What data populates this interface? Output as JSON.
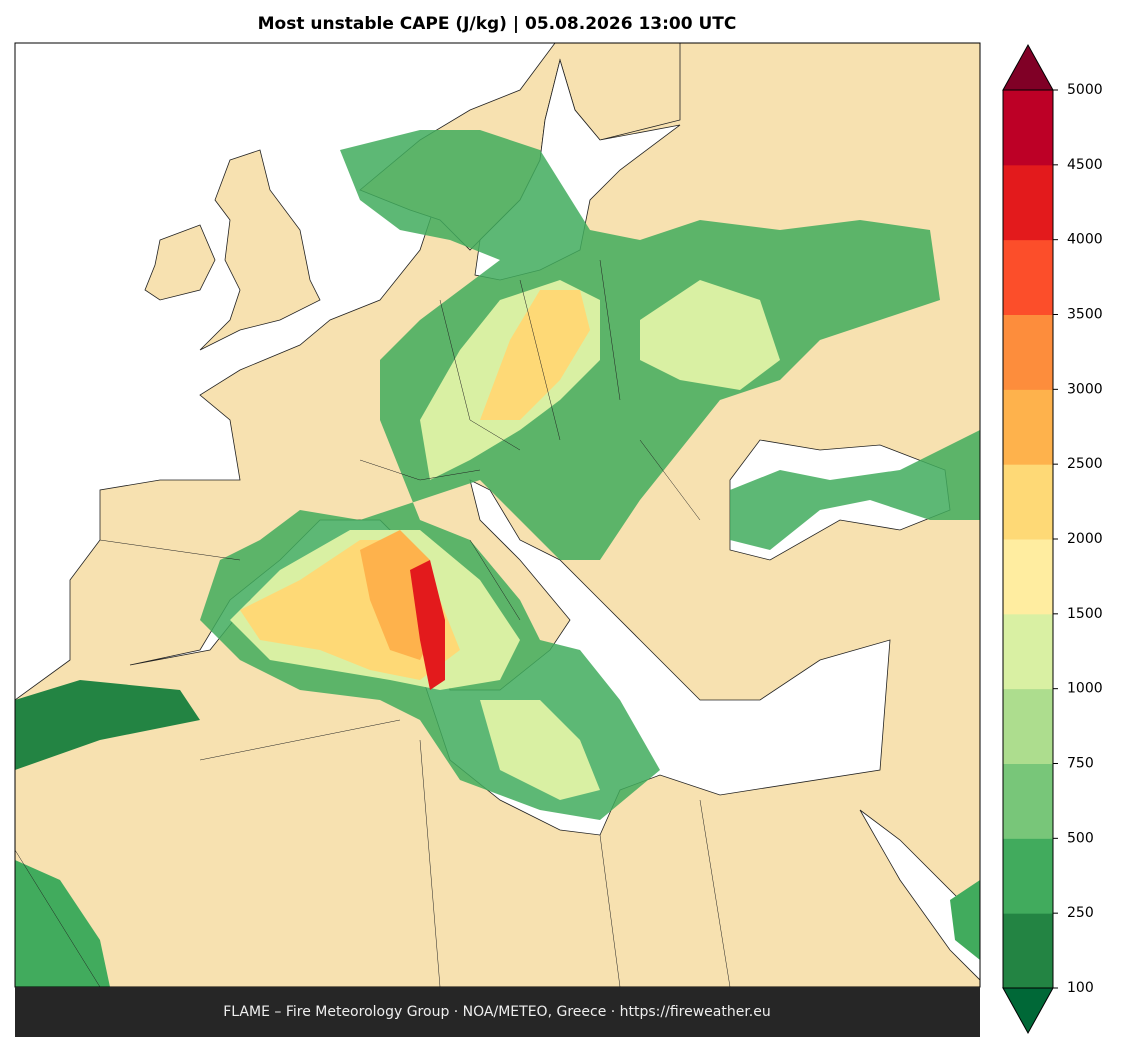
{
  "title": "Most unstable CAPE (J/kg)  |  05.08.2026 13:00 UTC",
  "colorbar": {
    "ticks": [
      100,
      250,
      500,
      750,
      1000,
      1500,
      2000,
      2500,
      3000,
      3500,
      4000,
      4500,
      5000
    ],
    "colors": [
      "#238443",
      "#41ab5d",
      "#78c679",
      "#addd8e",
      "#d9f0a3",
      "#ffeda0",
      "#fed976",
      "#feb24c",
      "#fd8d3c",
      "#fc4e2a",
      "#e31a1c",
      "#bd0026"
    ],
    "under_color": "#006837",
    "over_color": "#800026"
  },
  "footer": "FLAME – Fire Meteorology Group · NOA/METEO, Greece · https://fireweather.eu"
}
